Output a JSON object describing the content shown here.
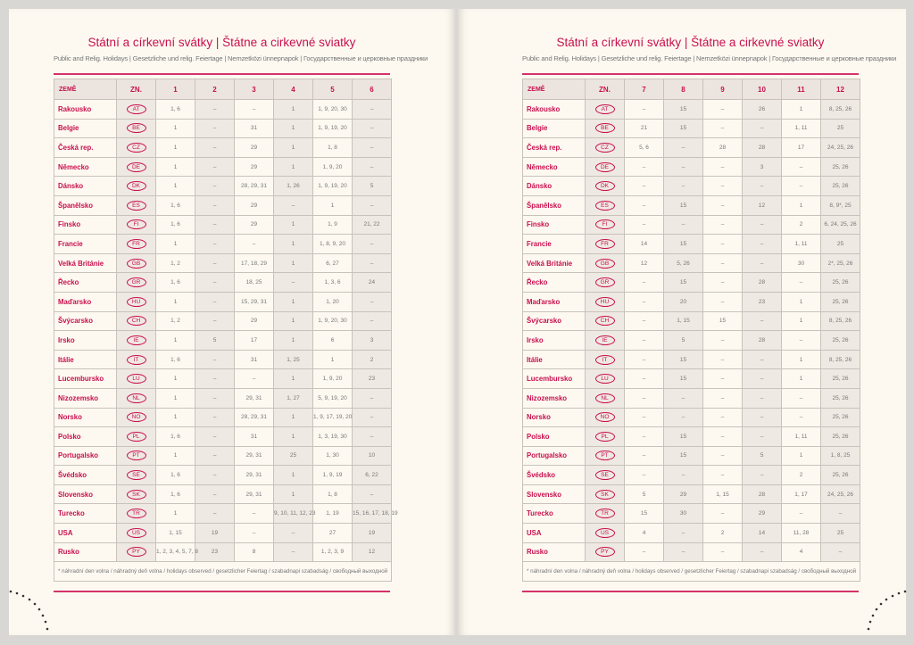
{
  "title": "Státní a církevní svátky | Štátne a cirkevné sviatky",
  "subtitle": "Public and Relig. Holidays | Gesetzliche und relig. Feiertage | Nemzetközi ünnepnapok | Государственные и церковные праздники",
  "col_country": "ZEMĚ",
  "col_code": "ZN.",
  "footnote": "* náhradní den volna / náhradný deň volna / holidays observed / gesetzlicher Feiertag / szabadnapi szabadság / свободный выходной",
  "colors": {
    "accent": "#c8104e",
    "shade": "#efe9e3",
    "paper": "#fdf9f1"
  },
  "countries": [
    "Rakousko",
    "Belgie",
    "Česká rep.",
    "Německo",
    "Dánsko",
    "Španělsko",
    "Finsko",
    "Francie",
    "Velká Británie",
    "Řecko",
    "Maďarsko",
    "Švýcarsko",
    "Irsko",
    "Itálie",
    "Lucembursko",
    "Nizozemsko",
    "Norsko",
    "Polsko",
    "Portugalsko",
    "Švédsko",
    "Slovensko",
    "Turecko",
    "USA",
    "Rusko"
  ],
  "codes": [
    "AT",
    "BE",
    "CZ",
    "DE",
    "DK",
    "ES",
    "FI",
    "FR",
    "GB",
    "GR",
    "HU",
    "CH",
    "IE",
    "IT",
    "LU",
    "NL",
    "NO",
    "PL",
    "PT",
    "SE",
    "SK",
    "TR",
    "US",
    "PY"
  ],
  "left": {
    "months": [
      "1",
      "2",
      "3",
      "4",
      "5",
      "6"
    ],
    "rows": [
      [
        "1, 6",
        "–",
        "–",
        "1",
        "1, 9, 20, 30",
        "–"
      ],
      [
        "1",
        "–",
        "31",
        "1",
        "1, 9, 19, 20",
        "–"
      ],
      [
        "1",
        "–",
        "29",
        "1",
        "1, 8",
        "–"
      ],
      [
        "1",
        "–",
        "29",
        "1",
        "1, 9, 20",
        "–"
      ],
      [
        "1",
        "–",
        "28, 29, 31",
        "1, 26",
        "1, 9, 19, 20",
        "5"
      ],
      [
        "1, 6",
        "–",
        "29",
        "–",
        "1",
        "–"
      ],
      [
        "1, 6",
        "–",
        "29",
        "1",
        "1, 9",
        "21, 22"
      ],
      [
        "1",
        "–",
        "–",
        "1",
        "1, 8, 9, 20",
        "–"
      ],
      [
        "1, 2",
        "–",
        "17, 18, 29",
        "1",
        "6, 27",
        "–"
      ],
      [
        "1, 6",
        "–",
        "18, 25",
        "–",
        "1, 3, 6",
        "24"
      ],
      [
        "1",
        "–",
        "15, 29, 31",
        "1",
        "1, 20",
        "–"
      ],
      [
        "1, 2",
        "–",
        "29",
        "1",
        "1, 9, 20, 30",
        "–"
      ],
      [
        "1",
        "5",
        "17",
        "1",
        "6",
        "3"
      ],
      [
        "1, 6",
        "–",
        "31",
        "1, 25",
        "1",
        "2"
      ],
      [
        "1",
        "–",
        "–",
        "1",
        "1, 9, 20",
        "23"
      ],
      [
        "1",
        "–",
        "29, 31",
        "1, 27",
        "5, 9, 19, 20",
        "–"
      ],
      [
        "1",
        "–",
        "28, 29, 31",
        "1",
        "1, 9, 17, 19, 20",
        "–"
      ],
      [
        "1, 6",
        "–",
        "31",
        "1",
        "1, 3, 19, 30",
        "–"
      ],
      [
        "1",
        "–",
        "29, 31",
        "25",
        "1, 30",
        "10"
      ],
      [
        "1, 6",
        "–",
        "29, 31",
        "1",
        "1, 9, 19",
        "6, 22"
      ],
      [
        "1, 6",
        "–",
        "29, 31",
        "1",
        "1, 8",
        "–"
      ],
      [
        "1",
        "–",
        "–",
        "9, 10, 11, 12, 23",
        "1, 19",
        "15, 16, 17, 18, 19"
      ],
      [
        "1, 15",
        "19",
        "–",
        "–",
        "27",
        "19"
      ],
      [
        "1, 2, 3, 4, 5, 7, 8",
        "23",
        "8",
        "–",
        "1, 2, 3, 9",
        "12"
      ]
    ]
  },
  "right": {
    "months": [
      "7",
      "8",
      "9",
      "10",
      "11",
      "12"
    ],
    "rows": [
      [
        "–",
        "15",
        "–",
        "26",
        "1",
        "8, 25, 26"
      ],
      [
        "21",
        "15",
        "–",
        "–",
        "1, 11",
        "25"
      ],
      [
        "5, 6",
        "–",
        "28",
        "28",
        "17",
        "24, 25, 26"
      ],
      [
        "–",
        "–",
        "–",
        "3",
        "–",
        "25, 26"
      ],
      [
        "–",
        "–",
        "–",
        "–",
        "–",
        "25, 26"
      ],
      [
        "–",
        "15",
        "–",
        "12",
        "1",
        "8, 9*, 25"
      ],
      [
        "–",
        "–",
        "–",
        "–",
        "2",
        "6, 24, 25, 26"
      ],
      [
        "14",
        "15",
        "–",
        "–",
        "1, 11",
        "25"
      ],
      [
        "12",
        "5, 26",
        "–",
        "–",
        "30",
        "2*, 25, 26"
      ],
      [
        "–",
        "15",
        "–",
        "28",
        "–",
        "25, 26"
      ],
      [
        "–",
        "20",
        "–",
        "23",
        "1",
        "25, 26"
      ],
      [
        "–",
        "1, 15",
        "15",
        "–",
        "1",
        "8, 25, 26"
      ],
      [
        "–",
        "5",
        "–",
        "28",
        "–",
        "25, 26"
      ],
      [
        "–",
        "15",
        "–",
        "–",
        "1",
        "8, 25, 26"
      ],
      [
        "–",
        "15",
        "–",
        "–",
        "1",
        "25, 26"
      ],
      [
        "–",
        "–",
        "–",
        "–",
        "–",
        "25, 26"
      ],
      [
        "–",
        "–",
        "–",
        "–",
        "–",
        "25, 26"
      ],
      [
        "–",
        "15",
        "–",
        "–",
        "1, 11",
        "25, 26"
      ],
      [
        "–",
        "15",
        "–",
        "5",
        "1",
        "1, 8, 25"
      ],
      [
        "–",
        "–",
        "–",
        "–",
        "2",
        "25, 26"
      ],
      [
        "5",
        "29",
        "1, 15",
        "28",
        "1, 17",
        "24, 25, 26"
      ],
      [
        "15",
        "30",
        "–",
        "29",
        "–",
        "–"
      ],
      [
        "4",
        "–",
        "2",
        "14",
        "11, 28",
        "25"
      ],
      [
        "–",
        "–",
        "–",
        "–",
        "4",
        "–"
      ]
    ]
  }
}
